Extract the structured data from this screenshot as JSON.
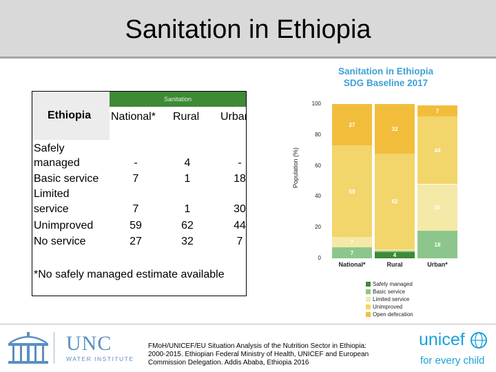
{
  "title": "Sanitation in Ethiopia",
  "table": {
    "group_header": "Sanitation",
    "country": "Ethiopia",
    "columns": [
      "National*",
      "Rural",
      "Urban*"
    ],
    "rows": [
      {
        "label": "Safely managed",
        "label_lines": [
          "Safely",
          "managed"
        ],
        "values": [
          "-",
          "4",
          "-"
        ]
      },
      {
        "label": "Basic service",
        "label_lines": [
          "Basic service"
        ],
        "values": [
          "7",
          "1",
          "18"
        ]
      },
      {
        "label": "Limited service",
        "label_lines": [
          "Limited",
          "service"
        ],
        "values": [
          "7",
          "1",
          "30"
        ]
      },
      {
        "label": "Unimproved",
        "label_lines": [
          "Unimproved"
        ],
        "values": [
          "59",
          "62",
          "44"
        ]
      },
      {
        "label": "No service",
        "label_lines": [
          "No service"
        ],
        "values": [
          "27",
          "32",
          "7"
        ]
      }
    ],
    "note": "*No safely managed estimate available"
  },
  "chart_data": {
    "type": "bar",
    "stacked": true,
    "title": "Sanitation in Ethiopia SDG Baseline 2017",
    "title_lines": [
      "Sanitation in Ethiopia",
      "SDG Baseline 2017"
    ],
    "ylabel": "Population (%)",
    "ylim": [
      0,
      100
    ],
    "yticks": [
      "0",
      "20",
      "40",
      "60",
      "80",
      "100"
    ],
    "categories": [
      "National*",
      "Rural",
      "Urban*"
    ],
    "series": [
      {
        "name": "Safely managed",
        "color": "#3e8a35",
        "values": [
          0,
          4,
          0
        ],
        "labels": [
          "",
          "4",
          ""
        ]
      },
      {
        "name": "Basic service",
        "color": "#8cc68c",
        "values": [
          7,
          1,
          18
        ],
        "labels": [
          "7",
          "1",
          "18"
        ]
      },
      {
        "name": "Limited service",
        "color": "#f4e9a6",
        "values": [
          7,
          1,
          30
        ],
        "labels": [
          "7",
          "1",
          "30"
        ]
      },
      {
        "name": "Unimproved",
        "color": "#f2d56b",
        "values": [
          59,
          62,
          44
        ],
        "labels": [
          "59",
          "62",
          "44"
        ]
      },
      {
        "name": "Open defecation",
        "color": "#f3bd3c",
        "values": [
          27,
          32,
          7
        ],
        "labels": [
          "27",
          "32",
          "7"
        ]
      }
    ],
    "legend_position": "bottom-right"
  },
  "footer": {
    "unc_name": "UNC",
    "unc_subtitle": "WATER INSTITUTE",
    "citation": "FMoH/UNICEF/EU Situation Analysis of the Nutrition Sector in Ethiopia: 2000-2015. Ethiopian Federal Ministry of Health, UNICEF and European Commission Delegation. Addis Ababa, Ethiopia 2016",
    "unicef_name": "unicef",
    "unicef_tagline": "for every child"
  }
}
